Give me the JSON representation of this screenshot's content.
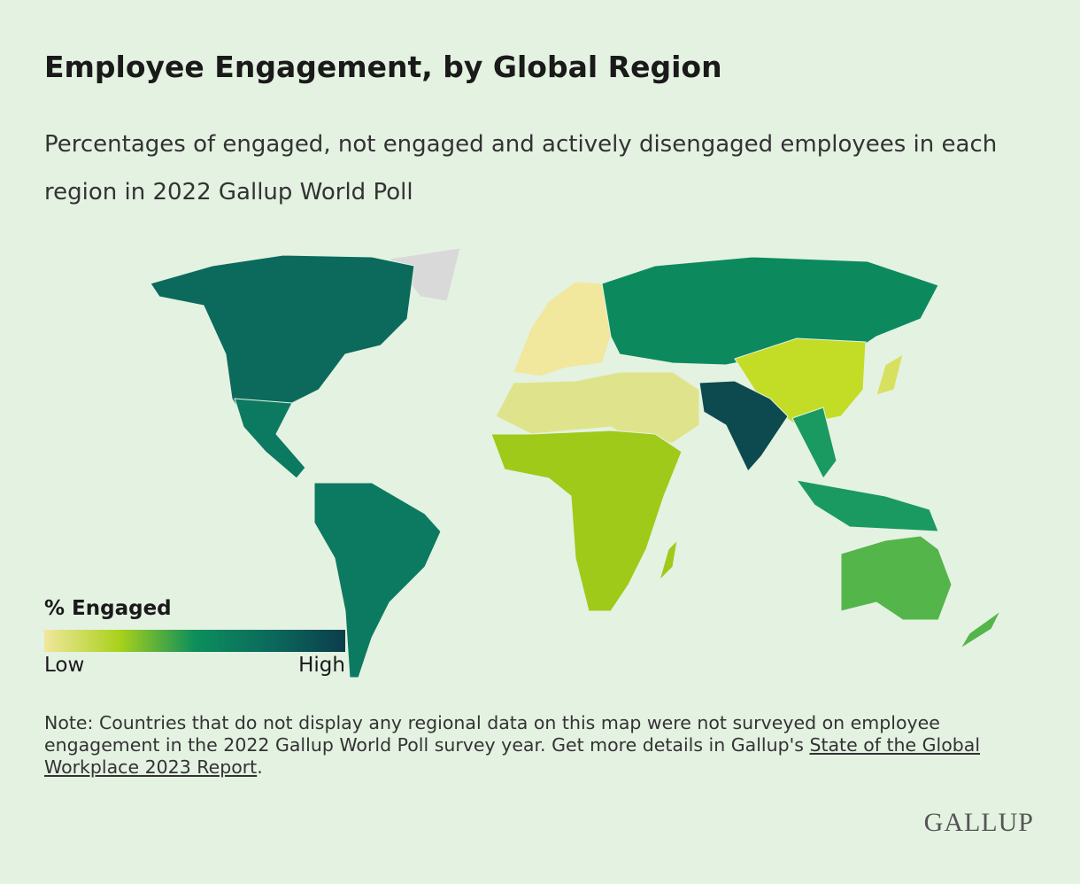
{
  "header": {
    "title": "Employee Engagement, by Global Region",
    "subtitle": "Percentages of engaged, not engaged and actively disengaged employees in each region in 2022 Gallup World Poll"
  },
  "legend": {
    "title": "% Engaged",
    "low": "Low",
    "high": "High",
    "colors": [
      "#f1e79d",
      "#a9d11b",
      "#0c8f5c",
      "#0b6a5c",
      "#0b3d4b"
    ]
  },
  "note": {
    "text": "Note: Countries that do not display any regional data on this map were not surveyed on employee engagement in the 2022 Gallup World Poll survey year. Get more details in Gallup's ",
    "link": "State of the Global Workplace 2023 Report",
    "end": "."
  },
  "logo": "GALLUP"
}
